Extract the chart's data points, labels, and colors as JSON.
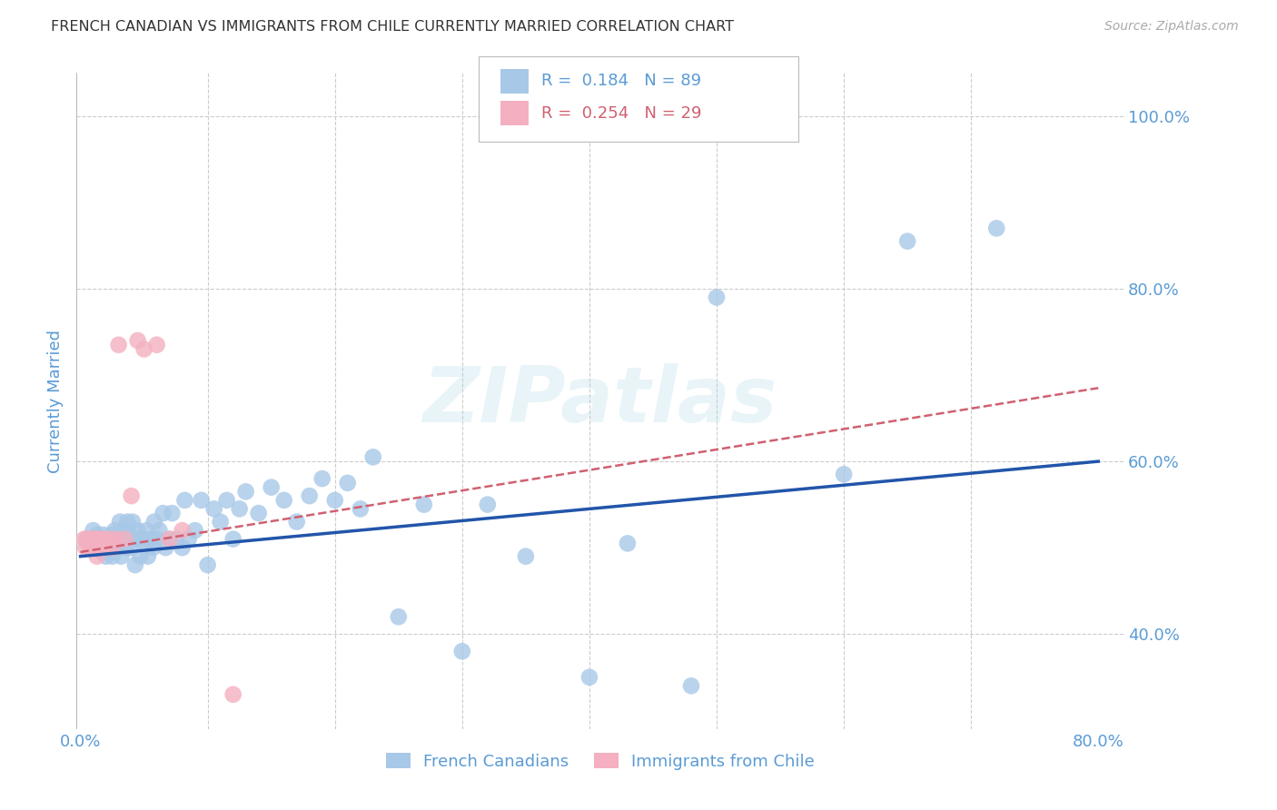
{
  "title": "FRENCH CANADIAN VS IMMIGRANTS FROM CHILE CURRENTLY MARRIED CORRELATION CHART",
  "source": "Source: ZipAtlas.com",
  "ylabel": "Currently Married",
  "xlim": [
    -0.003,
    0.82
  ],
  "ylim": [
    0.29,
    1.05
  ],
  "watermark": "ZIPatlas",
  "blue_color": "#a8c8e8",
  "pink_color": "#f4b0c0",
  "blue_line_color": "#2255aa",
  "pink_line_color": "#d06070",
  "axis_label_color": "#5b9bd5",
  "grid_color": "#cccccc",
  "blue_scatter_x": [
    0.005,
    0.008,
    0.01,
    0.01,
    0.012,
    0.013,
    0.015,
    0.015,
    0.016,
    0.017,
    0.018,
    0.018,
    0.019,
    0.02,
    0.02,
    0.021,
    0.022,
    0.023,
    0.023,
    0.024,
    0.025,
    0.025,
    0.026,
    0.027,
    0.028,
    0.03,
    0.03,
    0.031,
    0.032,
    0.033,
    0.035,
    0.035,
    0.036,
    0.037,
    0.038,
    0.04,
    0.041,
    0.043,
    0.044,
    0.045,
    0.047,
    0.048,
    0.05,
    0.052,
    0.053,
    0.055,
    0.057,
    0.058,
    0.06,
    0.062,
    0.065,
    0.067,
    0.07,
    0.072,
    0.075,
    0.08,
    0.082,
    0.085,
    0.09,
    0.095,
    0.1,
    0.105,
    0.11,
    0.115,
    0.12,
    0.125,
    0.13,
    0.14,
    0.15,
    0.16,
    0.17,
    0.18,
    0.19,
    0.2,
    0.21,
    0.22,
    0.23,
    0.25,
    0.27,
    0.3,
    0.32,
    0.35,
    0.4,
    0.43,
    0.48,
    0.5,
    0.6,
    0.65,
    0.72
  ],
  "blue_scatter_y": [
    0.51,
    0.51,
    0.505,
    0.52,
    0.5,
    0.515,
    0.5,
    0.51,
    0.51,
    0.495,
    0.505,
    0.515,
    0.505,
    0.49,
    0.51,
    0.505,
    0.495,
    0.51,
    0.505,
    0.515,
    0.49,
    0.51,
    0.505,
    0.52,
    0.51,
    0.505,
    0.5,
    0.53,
    0.49,
    0.51,
    0.505,
    0.52,
    0.5,
    0.53,
    0.515,
    0.5,
    0.53,
    0.48,
    0.51,
    0.52,
    0.49,
    0.51,
    0.505,
    0.52,
    0.49,
    0.51,
    0.5,
    0.53,
    0.51,
    0.52,
    0.54,
    0.5,
    0.51,
    0.54,
    0.51,
    0.5,
    0.555,
    0.51,
    0.52,
    0.555,
    0.48,
    0.545,
    0.53,
    0.555,
    0.51,
    0.545,
    0.565,
    0.54,
    0.57,
    0.555,
    0.53,
    0.56,
    0.58,
    0.555,
    0.575,
    0.545,
    0.605,
    0.42,
    0.55,
    0.38,
    0.55,
    0.49,
    0.35,
    0.505,
    0.34,
    0.79,
    0.585,
    0.855,
    0.87
  ],
  "pink_scatter_x": [
    0.003,
    0.004,
    0.005,
    0.006,
    0.007,
    0.008,
    0.009,
    0.01,
    0.011,
    0.012,
    0.013,
    0.014,
    0.015,
    0.017,
    0.018,
    0.019,
    0.02,
    0.022,
    0.025,
    0.028,
    0.03,
    0.035,
    0.04,
    0.045,
    0.05,
    0.06,
    0.07,
    0.08,
    0.12
  ],
  "pink_scatter_y": [
    0.51,
    0.5,
    0.51,
    0.505,
    0.51,
    0.5,
    0.51,
    0.5,
    0.51,
    0.5,
    0.49,
    0.51,
    0.505,
    0.5,
    0.51,
    0.5,
    0.505,
    0.51,
    0.5,
    0.51,
    0.735,
    0.51,
    0.56,
    0.74,
    0.73,
    0.735,
    0.51,
    0.52,
    0.33
  ],
  "blue_trend_x0": 0.0,
  "blue_trend_x1": 0.8,
  "blue_trend_y0": 0.49,
  "blue_trend_y1": 0.6,
  "pink_trend_x0": 0.0,
  "pink_trend_x1": 0.8,
  "pink_trend_y0": 0.495,
  "pink_trend_y1": 0.685,
  "legend_label_blue": "French Canadians",
  "legend_label_pink": "Immigrants from Chile",
  "legend_r1_text": "R =  0.184   N = 89",
  "legend_r2_text": "R =  0.254   N = 29"
}
